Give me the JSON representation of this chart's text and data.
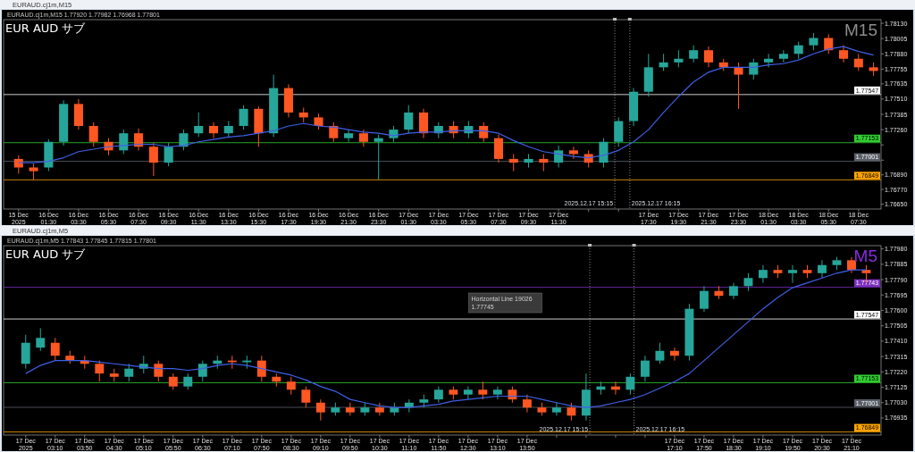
{
  "chart_data": [
    {
      "type": "candlestick",
      "title": "EUR AUD サブ",
      "subtitle": "M15",
      "grid": false,
      "annotations": [
        "EURAUD.cj1m,M15",
        "EURAUD.cj1m,M15 1.77920 1.77982 1.76968 1.77801"
      ],
      "colors": [
        "#ff5722",
        "#ff5722",
        "#26a69a",
        "#26a69a",
        "#ff5722",
        "#ff5722",
        "#ff5722",
        "#26a69a",
        "#ff5722",
        "#ff5722",
        "#26a69a",
        "#26a69a",
        "#26a69a",
        "#ff5722",
        "#26a69a",
        "#26a69a",
        "#ff5722",
        "#26a69a",
        "#ff5722",
        "#ff5722",
        "#ff5722",
        "#ff5722",
        "#26a69a",
        "#ff5722",
        "#26a69a",
        "#26a69a",
        "#26a69a",
        "#ff5722",
        "#26a69a",
        "#ff5722",
        "#26a69a",
        "#ff5722",
        "#ff5722",
        "#ff5722",
        "#26a69a",
        "#ff5722",
        "#26a69a",
        "#ff5722",
        "#ff5722",
        "#26a69a",
        "#26a69a",
        "#26a69a",
        "#26a69a",
        "#26a69a",
        "#26a69a",
        "#26a69a",
        "#ff5722",
        "#ff5722",
        "#ff5722",
        "#26a69a",
        "#26a69a",
        "#26a69a",
        "#26a69a",
        "#26a69a",
        "#ff5722",
        "#ff5722",
        "#ff5722",
        "#ff5722"
      ],
      "x": [
        "2025-12-15T23:30",
        "2025-12-16T00:30",
        "2025-12-16T01:30",
        "2025-12-16T02:30",
        "2025-12-16T03:30",
        "2025-12-16T04:30",
        "2025-12-16T05:30",
        "2025-12-16T06:30",
        "2025-12-16T07:30",
        "2025-12-16T08:30",
        "2025-12-16T09:30",
        "2025-12-16T10:30",
        "2025-12-16T11:30",
        "2025-12-16T12:30",
        "2025-12-16T13:30",
        "2025-12-16T14:30",
        "2025-12-16T15:30",
        "2025-12-16T16:30",
        "2025-12-16T17:30",
        "2025-12-16T18:30",
        "2025-12-16T19:30",
        "2025-12-16T20:30",
        "2025-12-16T21:30",
        "2025-12-16T22:30",
        "2025-12-16T23:30",
        "2025-12-17T00:30",
        "2025-12-17T01:30",
        "2025-12-17T02:30",
        "2025-12-17T03:30",
        "2025-12-17T04:30",
        "2025-12-17T05:30",
        "2025-12-17T06:30",
        "2025-12-17T07:30",
        "2025-12-17T08:30",
        "2025-12-17T09:30",
        "2025-12-17T10:30",
        "2025-12-17T11:30",
        "2025-12-17T12:30",
        "2025-12-17T13:30",
        "2025-12-17T14:30",
        "2025-12-17T15:30",
        "2025-12-17T16:30",
        "2025-12-17T17:30",
        "2025-12-17T18:30",
        "2025-12-17T19:30",
        "2025-12-17T20:30",
        "2025-12-17T21:30",
        "2025-12-17T22:30",
        "2025-12-17T23:30",
        "2025-12-18T00:30",
        "2025-12-18T01:30",
        "2025-12-18T02:30",
        "2025-12-18T03:30",
        "2025-12-18T04:30",
        "2025-12-18T05:30",
        "2025-12-18T06:30",
        "2025-12-18T07:30",
        "2025-12-18T08:30"
      ],
      "ohlc": [
        [
          1.7702,
          1.7705,
          1.769,
          1.7695
        ],
        [
          1.7695,
          1.7698,
          1.7685,
          1.7692
        ],
        [
          1.7695,
          1.7718,
          1.7692,
          1.7716
        ],
        [
          1.7716,
          1.775,
          1.7713,
          1.7747
        ],
        [
          1.7747,
          1.7751,
          1.7726,
          1.7729
        ],
        [
          1.7729,
          1.7732,
          1.7712,
          1.7716
        ],
        [
          1.7716,
          1.7719,
          1.7705,
          1.7709
        ],
        [
          1.7709,
          1.7726,
          1.7706,
          1.7723
        ],
        [
          1.7723,
          1.7727,
          1.7709,
          1.7712
        ],
        [
          1.7712,
          1.7715,
          1.7688,
          1.7699
        ],
        [
          1.7699,
          1.7715,
          1.7696,
          1.7712
        ],
        [
          1.7712,
          1.7726,
          1.7709,
          1.7723
        ],
        [
          1.7723,
          1.774,
          1.772,
          1.7729
        ],
        [
          1.7729,
          1.7732,
          1.7719,
          1.7723
        ],
        [
          1.7723,
          1.7733,
          1.772,
          1.7729
        ],
        [
          1.7729,
          1.7746,
          1.7726,
          1.7743
        ],
        [
          1.7743,
          1.7745,
          1.7712,
          1.7723
        ],
        [
          1.7723,
          1.7771,
          1.772,
          1.776
        ],
        [
          1.776,
          1.7763,
          1.7736,
          1.774
        ],
        [
          1.774,
          1.7744,
          1.7732,
          1.7736
        ],
        [
          1.7736,
          1.7739,
          1.7726,
          1.7729
        ],
        [
          1.7729,
          1.7732,
          1.7716,
          1.7719
        ],
        [
          1.7719,
          1.7726,
          1.7716,
          1.7723
        ],
        [
          1.7723,
          1.7726,
          1.7712,
          1.7716
        ],
        [
          1.7716,
          1.7722,
          1.7685,
          1.7719
        ],
        [
          1.7719,
          1.7729,
          1.7716,
          1.7726
        ],
        [
          1.7726,
          1.7746,
          1.7723,
          1.774
        ],
        [
          1.774,
          1.7743,
          1.7719,
          1.7723
        ],
        [
          1.7723,
          1.7732,
          1.7719,
          1.7729
        ],
        [
          1.7729,
          1.7733,
          1.7719,
          1.7723
        ],
        [
          1.7723,
          1.7733,
          1.7719,
          1.7729
        ],
        [
          1.7729,
          1.7732,
          1.7716,
          1.7719
        ],
        [
          1.7719,
          1.7722,
          1.7699,
          1.7702
        ],
        [
          1.7702,
          1.7706,
          1.7692,
          1.7699
        ],
        [
          1.7699,
          1.7706,
          1.7695,
          1.7702
        ],
        [
          1.7702,
          1.7706,
          1.7692,
          1.7699
        ],
        [
          1.7699,
          1.7713,
          1.7695,
          1.7709
        ],
        [
          1.7709,
          1.7712,
          1.7702,
          1.7706
        ],
        [
          1.7706,
          1.7709,
          1.7695,
          1.7699
        ],
        [
          1.7699,
          1.7719,
          1.7695,
          1.7716
        ],
        [
          1.7716,
          1.7736,
          1.7712,
          1.7733
        ],
        [
          1.7733,
          1.776,
          1.7729,
          1.7757
        ],
        [
          1.7757,
          1.7788,
          1.7753,
          1.7777
        ],
        [
          1.7777,
          1.7788,
          1.7774,
          1.7781
        ],
        [
          1.7781,
          1.7791,
          1.7777,
          1.7784
        ],
        [
          1.7784,
          1.7795,
          1.7781,
          1.7791
        ],
        [
          1.7791,
          1.7794,
          1.7777,
          1.7781
        ],
        [
          1.7781,
          1.7784,
          1.7774,
          1.7777
        ],
        [
          1.7777,
          1.7781,
          1.7743,
          1.7771
        ],
        [
          1.7771,
          1.7784,
          1.7767,
          1.7781
        ],
        [
          1.7781,
          1.7788,
          1.7777,
          1.7784
        ],
        [
          1.7784,
          1.7791,
          1.7781,
          1.7788
        ],
        [
          1.7788,
          1.7798,
          1.7784,
          1.7795
        ],
        [
          1.7795,
          1.7805,
          1.7791,
          1.7801
        ],
        [
          1.7801,
          1.7804,
          1.7788,
          1.7791
        ],
        [
          1.7791,
          1.7795,
          1.7781,
          1.7784
        ],
        [
          1.7784,
          1.7788,
          1.7774,
          1.7777
        ],
        [
          1.7777,
          1.7781,
          1.777,
          1.7774
        ]
      ],
      "series": [
        {
          "type": "line",
          "color": "#3f5fe8",
          "values": [
            1.7699,
            1.7699,
            1.77,
            1.7703,
            1.7708,
            1.771,
            1.7712,
            1.7713,
            1.7714,
            1.7714,
            1.7712,
            1.7713,
            1.7716,
            1.7718,
            1.772,
            1.7721,
            1.7723,
            1.7725,
            1.7729,
            1.7731,
            1.7729,
            1.7728,
            1.7726,
            1.7724,
            1.7723,
            1.7721,
            1.7723,
            1.7724,
            1.7724,
            1.7725,
            1.7725,
            1.7725,
            1.7723,
            1.7717,
            1.7712,
            1.7708,
            1.7706,
            1.7704,
            1.7703,
            1.7705,
            1.7709,
            1.7716,
            1.7726,
            1.774,
            1.7753,
            1.7765,
            1.7773,
            1.7777,
            1.7777,
            1.7777,
            1.7779,
            1.778,
            1.7783,
            1.7788,
            1.7792,
            1.7794,
            1.779,
            1.7787
          ]
        }
      ],
      "xlim": [
        "2025-12-15T22:30",
        "2025-12-18T09:00"
      ],
      "ylim": [
        1.7661,
        1.7816
      ],
      "yticks": [
        {
          "value": 1.7813,
          "label": "1.78130"
        },
        {
          "value": 1.78005,
          "label": "1.78005"
        },
        {
          "value": 1.7788,
          "label": "1.77880"
        },
        {
          "value": 1.77755,
          "label": "1.77755"
        },
        {
          "value": 1.77635,
          "label": "1.77635"
        },
        {
          "value": 1.7751,
          "label": "1.77510"
        },
        {
          "value": 1.77385,
          "label": "1.77385"
        },
        {
          "value": 1.7726,
          "label": "1.77260"
        },
        {
          "value": 1.77135,
          "label": null
        },
        {
          "value": 1.7701,
          "label": null
        },
        {
          "value": 1.7689,
          "label": "1.76890"
        },
        {
          "value": 1.7677,
          "label": "1.76770"
        },
        {
          "value": 1.7665,
          "label": "1.76650"
        }
      ],
      "xticks": [
        {
          "value": "2025-12-15T23:30",
          "label": "15 Dec 2025"
        },
        {
          "value": "2025-12-16T01:30",
          "label": "16 Dec 01:30"
        },
        {
          "value": "2025-12-16T03:30",
          "label": "16 Dec 03:30"
        },
        {
          "value": "2025-12-16T05:30",
          "label": "16 Dec 05:30"
        },
        {
          "value": "2025-12-16T07:30",
          "label": "16 Dec 07:30"
        },
        {
          "value": "2025-12-16T09:30",
          "label": "16 Dec 09:30"
        },
        {
          "value": "2025-12-16T11:30",
          "label": "16 Dec 11:30"
        },
        {
          "value": "2025-12-16T13:30",
          "label": "16 Dec 13:30"
        },
        {
          "value": "2025-12-16T15:30",
          "label": "16 Dec 15:30"
        },
        {
          "value": "2025-12-16T17:30",
          "label": "16 Dec 17:30"
        },
        {
          "value": "2025-12-16T19:30",
          "label": "16 Dec 19:30"
        },
        {
          "value": "2025-12-16T21:30",
          "label": "16 Dec 21:30"
        },
        {
          "value": "2025-12-16T23:30",
          "label": "16 Dec 23:30"
        },
        {
          "value": "2025-12-17T01:30",
          "label": "17 Dec 01:30"
        },
        {
          "value": "2025-12-17T03:30",
          "label": "17 Dec 03:30"
        },
        {
          "value": "2025-12-17T05:30",
          "label": "17 Dec 05:30"
        },
        {
          "value": "2025-12-17T07:30",
          "label": "17 Dec 07:30"
        },
        {
          "value": "2025-12-17T09:30",
          "label": "17 Dec 09:30"
        },
        {
          "value": "2025-12-17T11:30",
          "label": "17 Dec 11:30"
        },
        {
          "value": "2025-12-17T13:30",
          "label": null
        },
        {
          "value": "2025-12-17T15:30",
          "label": null
        },
        {
          "value": "2025-12-17T17:30",
          "label": "17 Dec 17:30"
        },
        {
          "value": "2025-12-17T19:30",
          "label": "17 Dec 19:30"
        },
        {
          "value": "2025-12-17T21:30",
          "label": "17 Dec 21:30"
        },
        {
          "value": "2025-12-17T23:30",
          "label": "17 Dec 23:30"
        },
        {
          "value": "2025-12-18T01:30",
          "label": "18 Dec 01:30"
        },
        {
          "value": "2025-12-18T03:30",
          "label": "18 Dec 03:30"
        },
        {
          "value": "2025-12-18T05:30",
          "label": "18 Dec 05:30"
        },
        {
          "value": "2025-12-18T07:30",
          "label": "18 Dec 07:30"
        }
      ],
      "ref_lines": [
        {
          "axis": "y",
          "value": 1.77547,
          "label": "1.77547",
          "color": "#ffffff"
        },
        {
          "axis": "y",
          "value": 1.77153,
          "label": "1.77153",
          "color": "#32cd32"
        },
        {
          "axis": "y",
          "value": 1.77001,
          "label": "1.77001",
          "color": "#5a6068"
        },
        {
          "axis": "y",
          "value": 1.76849,
          "label": "1.76849",
          "color": "#ffa500"
        },
        {
          "axis": "x",
          "value": "2025-12-17T15:15",
          "label": "2025.12.17 15:15",
          "color": "#c0c0c0",
          "line_style": "dotted"
        },
        {
          "axis": "x",
          "value": "2025-12-17T16:15",
          "label": "2025.12.17 16:15",
          "color": "#c0c0c0",
          "line_style": "dotted"
        }
      ]
    },
    {
      "type": "candlestick",
      "title": "EUR AUD サブ",
      "subtitle": "M5",
      "grid": false,
      "annotations": [
        "EURAUD.cj1m,M5",
        "EURAUD.cj1m,M5 1.77843 1.77845 1.77815 1.77801",
        "Horizontal Line 19026",
        "1.77745"
      ],
      "colors": [
        "#26a69a",
        "#26a69a",
        "#ff5722",
        "#ff5722",
        "#ff5722",
        "#ff5722",
        "#ff5722",
        "#26a69a",
        "#26a69a",
        "#ff5722",
        "#ff5722",
        "#26a69a",
        "#26a69a",
        "#26a69a",
        "#ff5722",
        "#26a69a",
        "#ff5722",
        "#ff5722",
        "#ff5722",
        "#ff5722",
        "#ff5722",
        "#26a69a",
        "#ff5722",
        "#26a69a",
        "#ff5722",
        "#26a69a",
        "#26a69a",
        "#26a69a",
        "#26a69a",
        "#ff5722",
        "#26a69a",
        "#ff5722",
        "#26a69a",
        "#ff5722",
        "#ff5722",
        "#ff5722",
        "#26a69a",
        "#ff5722",
        "#26a69a",
        "#26a69a",
        "#ff5722",
        "#26a69a",
        "#26a69a",
        "#26a69a",
        "#ff5722",
        "#26a69a",
        "#26a69a",
        "#ff5722",
        "#26a69a",
        "#26a69a",
        "#26a69a",
        "#ff5722",
        "#26a69a",
        "#ff5722",
        "#26a69a",
        "#26a69a",
        "#ff5722",
        "#ff5722"
      ],
      "x": [
        "2025-12-17T02:30",
        "2025-12-17T02:50",
        "2025-12-17T03:10",
        "2025-12-17T03:30",
        "2025-12-17T03:50",
        "2025-12-17T04:10",
        "2025-12-17T04:30",
        "2025-12-17T04:50",
        "2025-12-17T05:10",
        "2025-12-17T05:30",
        "2025-12-17T05:50",
        "2025-12-17T06:10",
        "2025-12-17T06:30",
        "2025-12-17T06:50",
        "2025-12-17T07:10",
        "2025-12-17T07:30",
        "2025-12-17T07:50",
        "2025-12-17T08:10",
        "2025-12-17T08:30",
        "2025-12-17T08:50",
        "2025-12-17T09:10",
        "2025-12-17T09:30",
        "2025-12-17T09:50",
        "2025-12-17T10:10",
        "2025-12-17T10:30",
        "2025-12-17T10:50",
        "2025-12-17T11:10",
        "2025-12-17T11:30",
        "2025-12-17T11:50",
        "2025-12-17T12:10",
        "2025-12-17T12:30",
        "2025-12-17T12:50",
        "2025-12-17T13:10",
        "2025-12-17T13:30",
        "2025-12-17T13:50",
        "2025-12-17T14:10",
        "2025-12-17T14:30",
        "2025-12-17T14:50",
        "2025-12-17T15:10",
        "2025-12-17T15:30",
        "2025-12-17T15:50",
        "2025-12-17T16:10",
        "2025-12-17T16:30",
        "2025-12-17T16:50",
        "2025-12-17T17:10",
        "2025-12-17T17:30",
        "2025-12-17T17:50",
        "2025-12-17T18:10",
        "2025-12-17T18:30",
        "2025-12-17T18:50",
        "2025-12-17T19:10",
        "2025-12-17T19:30",
        "2025-12-17T19:50",
        "2025-12-17T20:10",
        "2025-12-17T20:30",
        "2025-12-17T20:50",
        "2025-12-17T21:10",
        "2025-12-17T21:30"
      ],
      "ohlc": [
        [
          1.7727,
          1.7745,
          1.7724,
          1.774
        ],
        [
          1.7737,
          1.7749,
          1.7735,
          1.7743
        ],
        [
          1.774,
          1.7743,
          1.7729,
          1.7732
        ],
        [
          1.7732,
          1.7735,
          1.7727,
          1.7729
        ],
        [
          1.7729,
          1.7732,
          1.7724,
          1.7727
        ],
        [
          1.7727,
          1.7729,
          1.7716,
          1.7721
        ],
        [
          1.7721,
          1.7724,
          1.7716,
          1.7719
        ],
        [
          1.7719,
          1.7727,
          1.7716,
          1.7724
        ],
        [
          1.7724,
          1.7732,
          1.7721,
          1.7727
        ],
        [
          1.7727,
          1.7729,
          1.7716,
          1.7719
        ],
        [
          1.7719,
          1.7721,
          1.7711,
          1.7713
        ],
        [
          1.7713,
          1.7721,
          1.7711,
          1.7719
        ],
        [
          1.7719,
          1.7729,
          1.7716,
          1.7727
        ],
        [
          1.7727,
          1.7732,
          1.7724,
          1.7729
        ],
        [
          1.7729,
          1.7732,
          1.7724,
          1.7728
        ],
        [
          1.7728,
          1.7732,
          1.7724,
          1.7729
        ],
        [
          1.7729,
          1.7732,
          1.7716,
          1.7719
        ],
        [
          1.7719,
          1.7721,
          1.7713,
          1.7716
        ],
        [
          1.7716,
          1.7719,
          1.7708,
          1.7711
        ],
        [
          1.7711,
          1.7713,
          1.77,
          1.7703
        ],
        [
          1.7703,
          1.7705,
          1.7692,
          1.7697
        ],
        [
          1.7697,
          1.7703,
          1.7695,
          1.77
        ],
        [
          1.77,
          1.7703,
          1.7695,
          1.7697
        ],
        [
          1.7697,
          1.7703,
          1.7695,
          1.77
        ],
        [
          1.77,
          1.7703,
          1.7695,
          1.7697
        ],
        [
          1.7697,
          1.7703,
          1.7695,
          1.77
        ],
        [
          1.77,
          1.7705,
          1.7697,
          1.7703
        ],
        [
          1.7703,
          1.7708,
          1.77,
          1.7705
        ],
        [
          1.7705,
          1.7713,
          1.7703,
          1.7711
        ],
        [
          1.7711,
          1.7713,
          1.7705,
          1.7708
        ],
        [
          1.7708,
          1.7713,
          1.7705,
          1.7711
        ],
        [
          1.7711,
          1.7716,
          1.7705,
          1.7708
        ],
        [
          1.7708,
          1.7713,
          1.7705,
          1.7711
        ],
        [
          1.7711,
          1.7713,
          1.7703,
          1.7705
        ],
        [
          1.7705,
          1.7708,
          1.7697,
          1.77
        ],
        [
          1.77,
          1.7703,
          1.7695,
          1.7697
        ],
        [
          1.7697,
          1.7703,
          1.7695,
          1.77
        ],
        [
          1.77,
          1.7703,
          1.7692,
          1.7695
        ],
        [
          1.7695,
          1.7721,
          1.7692,
          1.7711
        ],
        [
          1.7711,
          1.7716,
          1.7708,
          1.7713
        ],
        [
          1.7713,
          1.7716,
          1.7708,
          1.7711
        ],
        [
          1.7711,
          1.7721,
          1.7708,
          1.7719
        ],
        [
          1.7719,
          1.7732,
          1.7716,
          1.7729
        ],
        [
          1.7729,
          1.774,
          1.7727,
          1.7735
        ],
        [
          1.7735,
          1.7737,
          1.7729,
          1.7732
        ],
        [
          1.7732,
          1.7764,
          1.7729,
          1.7761
        ],
        [
          1.7761,
          1.7775,
          1.7759,
          1.7772
        ],
        [
          1.7772,
          1.7775,
          1.7767,
          1.7769
        ],
        [
          1.7769,
          1.7777,
          1.7767,
          1.7775
        ],
        [
          1.7775,
          1.7783,
          1.7772,
          1.778
        ],
        [
          1.778,
          1.7788,
          1.7777,
          1.7785
        ],
        [
          1.7785,
          1.7788,
          1.778,
          1.7783
        ],
        [
          1.7783,
          1.7788,
          1.7777,
          1.7785
        ],
        [
          1.7785,
          1.7788,
          1.778,
          1.7783
        ],
        [
          1.7783,
          1.7791,
          1.778,
          1.7788
        ],
        [
          1.7788,
          1.7793,
          1.7785,
          1.7791
        ],
        [
          1.7791,
          1.7793,
          1.7783,
          1.7785
        ],
        [
          1.7785,
          1.7788,
          1.7777,
          1.7783
        ]
      ],
      "series": [
        {
          "type": "line",
          "color": "#3f5fe8",
          "values": [
            1.7721,
            1.7726,
            1.7729,
            1.7729,
            1.7729,
            1.7728,
            1.7727,
            1.7726,
            1.7725,
            1.7724,
            1.7724,
            1.7723,
            1.7724,
            1.7726,
            1.7727,
            1.7726,
            1.7724,
            1.7722,
            1.772,
            1.7717,
            1.7713,
            1.771,
            1.7705,
            1.7703,
            1.7701,
            1.77,
            1.77,
            1.7701,
            1.7702,
            1.7704,
            1.7705,
            1.7706,
            1.7707,
            1.7707,
            1.7707,
            1.7705,
            1.7703,
            1.7701,
            1.77,
            1.7701,
            1.7703,
            1.7705,
            1.7708,
            1.7712,
            1.7716,
            1.7721,
            1.7729,
            1.7737,
            1.7745,
            1.7753,
            1.7761,
            1.7768,
            1.7774,
            1.7777,
            1.778,
            1.7783,
            1.7785,
            1.7785
          ]
        }
      ],
      "xlim": [
        "2025-12-17T02:00",
        "2025-12-17T21:50"
      ],
      "ylim": [
        1.7683,
        1.78
      ],
      "yticks": [
        {
          "value": 1.7798,
          "label": "1.77980"
        },
        {
          "value": 1.77885,
          "label": "1.77885"
        },
        {
          "value": 1.7779,
          "label": "1.77790"
        },
        {
          "value": 1.77695,
          "label": "1.77695"
        },
        {
          "value": 1.776,
          "label": "1.77600"
        },
        {
          "value": 1.77505,
          "label": "1.77505"
        },
        {
          "value": 1.7741,
          "label": "1.77410"
        },
        {
          "value": 1.77315,
          "label": "1.77315"
        },
        {
          "value": 1.7722,
          "label": "1.77220"
        },
        {
          "value": 1.77125,
          "label": "1.77125"
        },
        {
          "value": 1.7703,
          "label": "1.77030"
        },
        {
          "value": 1.76935,
          "label": "1.76935"
        }
      ],
      "xticks": [
        {
          "value": "2025-12-17T02:30",
          "label": "17 Dec 2025"
        },
        {
          "value": "2025-12-17T03:10",
          "label": "17 Dec 03:10"
        },
        {
          "value": "2025-12-17T03:50",
          "label": "17 Dec 03:50"
        },
        {
          "value": "2025-12-17T04:30",
          "label": "17 Dec 04:30"
        },
        {
          "value": "2025-12-17T05:10",
          "label": "17 Dec 05:10"
        },
        {
          "value": "2025-12-17T05:50",
          "label": "17 Dec 05:50"
        },
        {
          "value": "2025-12-17T06:30",
          "label": "17 Dec 06:30"
        },
        {
          "value": "2025-12-17T07:10",
          "label": "17 Dec 07:10"
        },
        {
          "value": "2025-12-17T07:50",
          "label": "17 Dec 07:50"
        },
        {
          "value": "2025-12-17T08:30",
          "label": "17 Dec 08:30"
        },
        {
          "value": "2025-12-17T09:10",
          "label": "17 Dec 09:10"
        },
        {
          "value": "2025-12-17T09:50",
          "label": "17 Dec 09:50"
        },
        {
          "value": "2025-12-17T10:30",
          "label": "17 Dec 10:30"
        },
        {
          "value": "2025-12-17T11:10",
          "label": "17 Dec 11:10"
        },
        {
          "value": "2025-12-17T11:50",
          "label": "17 Dec 11:50"
        },
        {
          "value": "2025-12-17T12:30",
          "label": "17 Dec 12:30"
        },
        {
          "value": "2025-12-17T13:10",
          "label": "17 Dec 13:10"
        },
        {
          "value": "2025-12-17T13:50",
          "label": "17 Dec 13:50"
        },
        {
          "value": "2025-12-17T14:30",
          "label": null
        },
        {
          "value": "2025-12-17T15:10",
          "label": null
        },
        {
          "value": "2025-12-17T15:50",
          "label": null
        },
        {
          "value": "2025-12-17T16:30",
          "label": null
        },
        {
          "value": "2025-12-17T17:10",
          "label": "17 Dec 17:10"
        },
        {
          "value": "2025-12-17T17:50",
          "label": "17 Dec 17:50"
        },
        {
          "value": "2025-12-17T18:30",
          "label": "17 Dec 18:30"
        },
        {
          "value": "2025-12-17T19:10",
          "label": "17 Dec 19:10"
        },
        {
          "value": "2025-12-17T19:50",
          "label": "17 Dec 19:50"
        },
        {
          "value": "2025-12-17T20:30",
          "label": "17 Dec 20:30"
        },
        {
          "value": "2025-12-17T21:10",
          "label": "17 Dec 21:10"
        }
      ],
      "ref_lines": [
        {
          "axis": "y",
          "value": 1.77743,
          "label": "1.77743",
          "color": "#7b2fbe"
        },
        {
          "axis": "y",
          "value": 1.77547,
          "label": "1.77547",
          "color": "#ffffff"
        },
        {
          "axis": "y",
          "value": 1.77153,
          "label": "1.77153",
          "color": "#32cd32"
        },
        {
          "axis": "y",
          "value": 1.77001,
          "label": "1.77001",
          "color": "#5a6068"
        },
        {
          "axis": "y",
          "value": 1.76849,
          "label": "1.76849",
          "color": "#ffa500"
        },
        {
          "axis": "x",
          "value": "2025-12-17T15:15",
          "label": "2025.12.17 15:15",
          "color": "#c0c0c0",
          "line_style": "dotted"
        },
        {
          "axis": "x",
          "value": "2025-12-17T16:15",
          "label": "2025.12.17 16:15",
          "color": "#c0c0c0",
          "line_style": "dotted"
        }
      ]
    }
  ]
}
